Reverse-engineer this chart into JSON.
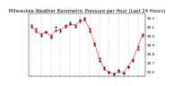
{
  "title": "Milwaukee Weather Barometric Pressure per Hour (Last 24 Hours)",
  "ylim": [
    29.55,
    30.25
  ],
  "yticks": [
    29.6,
    29.7,
    29.8,
    29.9,
    30.0,
    30.1,
    30.2
  ],
  "hours": [
    0,
    1,
    2,
    3,
    4,
    5,
    6,
    7,
    8,
    9,
    10,
    11,
    12,
    13,
    14,
    15,
    16,
    17,
    18,
    19,
    20,
    21,
    22,
    23
  ],
  "pressure": [
    30.12,
    30.08,
    30.0,
    30.05,
    29.98,
    30.1,
    30.05,
    30.12,
    30.15,
    30.1,
    30.18,
    30.2,
    30.05,
    29.9,
    29.72,
    29.65,
    29.6,
    29.58,
    29.62,
    29.58,
    29.65,
    29.72,
    29.85,
    30.0
  ],
  "red_line": [
    30.1,
    30.05,
    30.02,
    30.04,
    30.0,
    30.06,
    30.07,
    30.1,
    30.13,
    30.12,
    30.16,
    30.18,
    30.08,
    29.92,
    29.75,
    29.63,
    29.59,
    29.57,
    29.6,
    29.59,
    29.66,
    29.74,
    29.88,
    30.02
  ],
  "scatter_color": "#000000",
  "line_color": "#cc0000",
  "bg_color": "#ffffff",
  "grid_color": "#999999",
  "title_fontsize": 3.8,
  "tick_fontsize": 3.0,
  "line_width": 0.7,
  "marker_size": 1.0
}
